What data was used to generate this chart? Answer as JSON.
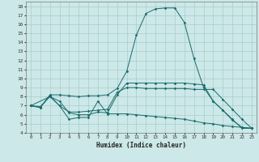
{
  "xlabel": "Humidex (Indice chaleur)",
  "background_color": "#cce8e8",
  "grid_color": "#aacccc",
  "line_color": "#1a6b6b",
  "xlim": [
    -0.5,
    23.5
  ],
  "ylim": [
    4,
    18.5
  ],
  "xticks": [
    0,
    1,
    2,
    3,
    4,
    5,
    6,
    7,
    8,
    9,
    10,
    11,
    12,
    13,
    14,
    15,
    16,
    17,
    18,
    19,
    20,
    21,
    22,
    23
  ],
  "yticks": [
    4,
    5,
    6,
    7,
    8,
    9,
    10,
    11,
    12,
    13,
    14,
    15,
    16,
    17,
    18
  ],
  "line1_x": [
    0,
    1,
    2,
    3,
    4,
    5,
    6,
    7,
    8,
    9,
    10,
    11,
    12,
    13,
    14,
    15,
    16,
    17,
    18,
    19,
    20,
    21,
    22,
    23
  ],
  "line1_y": [
    7.0,
    6.8,
    8.1,
    7.0,
    5.5,
    5.7,
    5.7,
    7.5,
    6.1,
    6.1,
    6.1,
    6.0,
    5.9,
    5.8,
    5.7,
    5.6,
    5.5,
    5.3,
    5.1,
    5.0,
    4.8,
    4.7,
    4.6,
    4.5
  ],
  "line2_x": [
    0,
    1,
    2,
    3,
    4,
    5,
    6,
    7,
    8,
    9,
    10,
    11,
    12,
    13,
    14,
    15,
    16,
    17,
    18,
    19,
    20,
    21,
    22,
    23
  ],
  "line2_y": [
    7.0,
    6.8,
    8.2,
    8.2,
    8.1,
    8.0,
    8.1,
    8.1,
    8.2,
    8.9,
    10.8,
    14.8,
    17.2,
    17.7,
    17.8,
    17.8,
    16.2,
    12.2,
    9.0,
    7.5,
    6.5,
    5.4,
    4.6,
    4.5
  ],
  "line3_x": [
    0,
    2,
    3,
    4,
    5,
    6,
    7,
    8,
    9,
    10,
    11,
    12,
    13,
    14,
    15,
    16,
    17,
    18,
    19,
    20,
    21,
    22,
    23
  ],
  "line3_y": [
    7.0,
    8.0,
    7.0,
    6.3,
    6.3,
    6.4,
    6.5,
    6.6,
    8.5,
    9.0,
    9.0,
    8.9,
    8.9,
    8.9,
    8.9,
    8.9,
    8.8,
    8.8,
    8.8,
    7.7,
    6.6,
    5.5,
    4.5
  ],
  "line4_x": [
    0,
    1,
    2,
    3,
    4,
    5,
    6,
    7,
    8,
    9,
    10,
    11,
    12,
    13,
    14,
    15,
    16,
    17,
    18,
    19,
    20,
    21,
    22,
    23
  ],
  "line4_y": [
    7.0,
    6.9,
    8.0,
    7.5,
    6.2,
    6.0,
    6.0,
    6.3,
    6.2,
    8.2,
    9.5,
    9.5,
    9.5,
    9.5,
    9.5,
    9.5,
    9.5,
    9.4,
    9.3,
    7.5,
    6.5,
    5.5,
    4.5,
    4.5
  ]
}
